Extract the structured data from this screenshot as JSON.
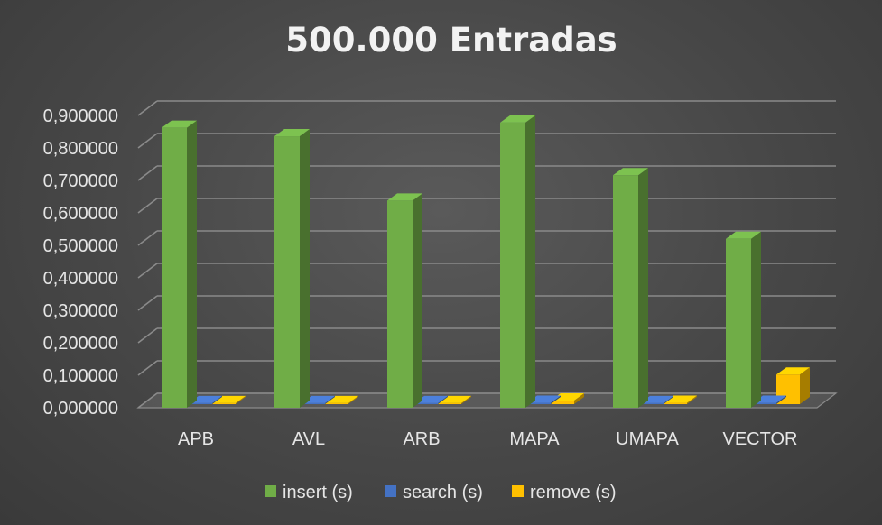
{
  "chart_data": {
    "type": "bar",
    "title": "500.000 Entradas",
    "categories": [
      "APB",
      "AVL",
      "ARB",
      "MAPA",
      "UMAPA",
      "VECTOR"
    ],
    "series": [
      {
        "name": "insert (s)",
        "color": "#70ad47",
        "values": [
          0.862,
          0.836,
          0.638,
          0.878,
          0.716,
          0.52
        ]
      },
      {
        "name": "search (s)",
        "color": "#4472c4",
        "values": [
          0.003,
          0.003,
          0.003,
          0.004,
          0.003,
          0.004
        ]
      },
      {
        "name": "remove (s)",
        "color": "#ffc000",
        "values": [
          0.003,
          0.003,
          0.003,
          0.011,
          0.004,
          0.091
        ]
      }
    ],
    "ylim": [
      0,
      0.9
    ],
    "yticks": [
      "0,000000",
      "0,100000",
      "0,200000",
      "0,300000",
      "0,400000",
      "0,500000",
      "0,600000",
      "0,700000",
      "0,800000",
      "0,900000"
    ],
    "grid": true,
    "legend_position": "bottom",
    "style": "3d-column"
  }
}
